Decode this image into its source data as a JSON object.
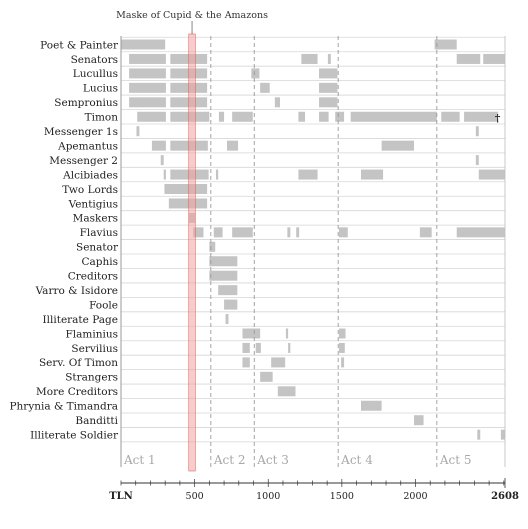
{
  "chart_data": {
    "type": "gantt",
    "title": "",
    "highlight": {
      "label": "Maske of Cupid & the Amazons",
      "start": 460,
      "end": 505,
      "color": "#f4a3a3"
    },
    "acts": [
      {
        "label": "Act 1",
        "start": 0
      },
      {
        "label": "Act 2",
        "start": 610
      },
      {
        "label": "Act 3",
        "start": 905
      },
      {
        "label": "Act 4",
        "start": 1475
      },
      {
        "label": "Act 5",
        "start": 2145
      }
    ],
    "x_axis": {
      "label": "TLN",
      "min": 0,
      "max": 2608,
      "ticks": [
        500,
        1000,
        1500,
        2000
      ],
      "end_label": "2608"
    },
    "characters": [
      {
        "name": "Poet & Painter",
        "segments": [
          [
            0,
            300
          ],
          [
            2130,
            2280
          ]
        ]
      },
      {
        "name": "Senators",
        "segments": [
          [
            55,
            305
          ],
          [
            335,
            585
          ],
          [
            1225,
            1335
          ],
          [
            1405,
            1425
          ],
          [
            2280,
            2440
          ],
          [
            2460,
            2608
          ]
        ]
      },
      {
        "name": "Lucullus",
        "segments": [
          [
            55,
            305
          ],
          [
            335,
            585
          ],
          [
            885,
            940
          ],
          [
            1345,
            1470
          ]
        ]
      },
      {
        "name": "Lucius",
        "segments": [
          [
            55,
            305
          ],
          [
            335,
            585
          ],
          [
            945,
            1010
          ],
          [
            1345,
            1470
          ]
        ]
      },
      {
        "name": "Sempronius",
        "segments": [
          [
            55,
            305
          ],
          [
            335,
            585
          ],
          [
            1045,
            1080
          ],
          [
            1345,
            1470
          ]
        ]
      },
      {
        "name": "Timon",
        "segments": [
          [
            110,
            305
          ],
          [
            335,
            600
          ],
          [
            665,
            700
          ],
          [
            755,
            895
          ],
          [
            1205,
            1250
          ],
          [
            1345,
            1410
          ],
          [
            1455,
            1515
          ],
          [
            1560,
            2145
          ],
          [
            2175,
            2300
          ],
          [
            2330,
            2560
          ]
        ]
      },
      {
        "name": "Messenger 1s",
        "segments": [
          [
            105,
            125
          ],
          [
            2410,
            2430
          ]
        ]
      },
      {
        "name": "Apemantus",
        "segments": [
          [
            210,
            305
          ],
          [
            335,
            590
          ],
          [
            720,
            795
          ],
          [
            1770,
            1990
          ]
        ]
      },
      {
        "name": "Messenger 2",
        "segments": [
          [
            270,
            290
          ],
          [
            2410,
            2430
          ]
        ]
      },
      {
        "name": "Alcibiades",
        "segments": [
          [
            290,
            305
          ],
          [
            335,
            595
          ],
          [
            645,
            660
          ],
          [
            1205,
            1335
          ],
          [
            1630,
            1780
          ],
          [
            2430,
            2608
          ]
        ]
      },
      {
        "name": "Two Lords",
        "segments": [
          [
            295,
            585
          ]
        ]
      },
      {
        "name": "Ventigius",
        "segments": [
          [
            325,
            585
          ]
        ]
      },
      {
        "name": "Maskers",
        "segments": [
          [
            460,
            505
          ]
        ]
      },
      {
        "name": "Flavius",
        "segments": [
          [
            490,
            560
          ],
          [
            630,
            690
          ],
          [
            755,
            895
          ],
          [
            1130,
            1150
          ],
          [
            1190,
            1210
          ],
          [
            1480,
            1540
          ],
          [
            2030,
            2110
          ],
          [
            2280,
            2608
          ]
        ]
      },
      {
        "name": "Senator",
        "segments": [
          [
            600,
            640
          ]
        ]
      },
      {
        "name": "Caphis",
        "segments": [
          [
            600,
            790
          ]
        ]
      },
      {
        "name": "Creditors",
        "segments": [
          [
            600,
            790
          ]
        ]
      },
      {
        "name": "Varro & Isidore",
        "segments": [
          [
            660,
            790
          ]
        ]
      },
      {
        "name": "Foole",
        "segments": [
          [
            700,
            790
          ]
        ]
      },
      {
        "name": "Illiterate Page",
        "segments": [
          [
            710,
            730
          ]
        ]
      },
      {
        "name": "Flaminius",
        "segments": [
          [
            825,
            945
          ],
          [
            1120,
            1135
          ],
          [
            1480,
            1525
          ]
        ]
      },
      {
        "name": "Servilius",
        "segments": [
          [
            825,
            875
          ],
          [
            915,
            950
          ],
          [
            1135,
            1150
          ],
          [
            1480,
            1520
          ]
        ]
      },
      {
        "name": "Serv. Of Timon",
        "segments": [
          [
            825,
            875
          ],
          [
            1020,
            1115
          ],
          [
            1495,
            1515
          ]
        ]
      },
      {
        "name": "Strangers",
        "segments": [
          [
            945,
            1030
          ]
        ]
      },
      {
        "name": "More Creditors",
        "segments": [
          [
            1065,
            1185
          ]
        ]
      },
      {
        "name": "Phrynia & Timandra",
        "segments": [
          [
            1630,
            1770
          ]
        ]
      },
      {
        "name": "Banditti",
        "segments": [
          [
            1990,
            2055
          ]
        ]
      },
      {
        "name": "Illiterate Soldier",
        "segments": [
          [
            2420,
            2440
          ],
          [
            2580,
            2608
          ]
        ]
      }
    ],
    "death_marker": {
      "character": "Timon",
      "at": 2560,
      "symbol": "†"
    }
  }
}
